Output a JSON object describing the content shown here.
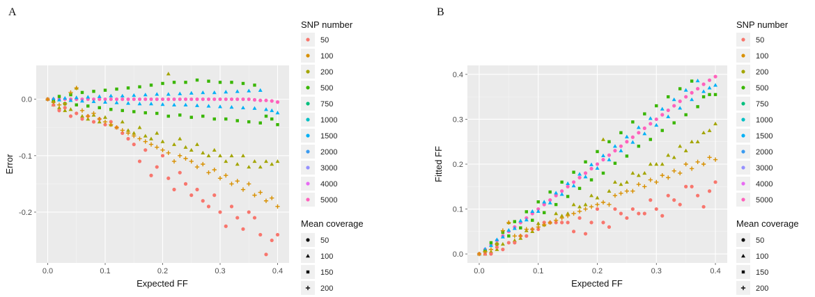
{
  "figure": {
    "colors": {
      "panel_bg": "#ebebeb",
      "grid_major": "#ffffff",
      "grid_minor": "#f5f5f5",
      "legend_key_bg": "#f0f0f0"
    }
  },
  "legend": {
    "color_title": "SNP number",
    "shape_title": "Mean coverage",
    "snp_levels": [
      {
        "label": "50",
        "color": "#F8766D"
      },
      {
        "label": "100",
        "color": "#D89000"
      },
      {
        "label": "200",
        "color": "#A3A500"
      },
      {
        "label": "500",
        "color": "#39B600"
      },
      {
        "label": "750",
        "color": "#00BF7D"
      },
      {
        "label": "1000",
        "color": "#00BFC4"
      },
      {
        "label": "1500",
        "color": "#00B0F6"
      },
      {
        "label": "2000",
        "color": "#3B9BF0"
      },
      {
        "label": "3000",
        "color": "#9590FF"
      },
      {
        "label": "4000",
        "color": "#E76BF3"
      },
      {
        "label": "5000",
        "color": "#FF62BC"
      }
    ],
    "coverage_levels": [
      {
        "label": "50",
        "shape": "circle"
      },
      {
        "label": "100",
        "shape": "triangle"
      },
      {
        "label": "150",
        "shape": "square"
      },
      {
        "label": "200",
        "shape": "plus"
      }
    ]
  },
  "chart_data": [
    {
      "panel": "A",
      "type": "scatter",
      "xlabel": "Expected FF",
      "ylabel": "Error",
      "xlim": [
        -0.02,
        0.42
      ],
      "ylim": [
        -0.29,
        0.06
      ],
      "xticks": [
        "0.0",
        "0.1",
        "0.2",
        "0.3",
        "0.4"
      ],
      "xtick_values": [
        0,
        0.1,
        0.2,
        0.3,
        0.4
      ],
      "yticks": [
        "-0.2",
        "-0.1",
        "0.0"
      ],
      "ytick_values": [
        -0.2,
        -0.1,
        0.0
      ],
      "grid": true,
      "legend_position": "right",
      "x": [
        0,
        0.01,
        0.02,
        0.03,
        0.04,
        0.05,
        0.06,
        0.07,
        0.08,
        0.09,
        0.1,
        0.11,
        0.12,
        0.13,
        0.14,
        0.15,
        0.16,
        0.17,
        0.18,
        0.19,
        0.2,
        0.21,
        0.22,
        0.23,
        0.24,
        0.25,
        0.26,
        0.27,
        0.28,
        0.29,
        0.3,
        0.31,
        0.32,
        0.33,
        0.34,
        0.35,
        0.36,
        0.37,
        0.38,
        0.39,
        0.4
      ],
      "series": [
        {
          "snp": "5000",
          "coverage": "50",
          "y": [
            0,
            0,
            0,
            0,
            0,
            0,
            0,
            0,
            0,
            0,
            0,
            0,
            0,
            0,
            0,
            0,
            0,
            0,
            0,
            0,
            0,
            0,
            0,
            0,
            0,
            0,
            0,
            0,
            0,
            0,
            0,
            0,
            0,
            0,
            0,
            0,
            -0.001,
            -0.002,
            -0.002,
            -0.003,
            -0.005
          ]
        },
        {
          "snp": "1500",
          "coverage": "100",
          "y": [
            0,
            0.001,
            -0.001,
            0.002,
            -0.002,
            0.003,
            -0.003,
            0.004,
            -0.004,
            0.005,
            -0.005,
            0.006,
            -0.006,
            0.006,
            -0.007,
            0.007,
            -0.008,
            0.008,
            -0.008,
            0.009,
            -0.009,
            0.009,
            -0.01,
            0.01,
            -0.01,
            0.011,
            -0.011,
            0.012,
            -0.012,
            0.012,
            -0.013,
            0.013,
            -0.014,
            0.014,
            -0.015,
            0.015,
            -0.016,
            0.016,
            -0.018,
            -0.02,
            -0.024
          ]
        },
        {
          "snp": "500",
          "coverage": "150",
          "y": [
            0,
            -0.004,
            0.005,
            -0.008,
            0.008,
            -0.01,
            0.012,
            -0.012,
            0.014,
            -0.015,
            0.016,
            -0.018,
            0.018,
            -0.02,
            0.02,
            -0.022,
            0.022,
            -0.024,
            0.025,
            -0.025,
            0.028,
            -0.03,
            0.03,
            -0.028,
            0.03,
            -0.032,
            0.034,
            -0.03,
            0.032,
            -0.035,
            0.03,
            -0.035,
            0.03,
            -0.038,
            0.028,
            -0.04,
            0.025,
            -0.042,
            -0.03,
            -0.035,
            -0.045
          ]
        },
        {
          "snp": "200",
          "coverage": "100",
          "y": [
            0,
            -0.01,
            -0.015,
            -0.02,
            -0.018,
            0.02,
            -0.03,
            -0.035,
            -0.028,
            -0.04,
            -0.032,
            -0.045,
            -0.05,
            -0.04,
            -0.055,
            -0.06,
            -0.05,
            -0.065,
            -0.07,
            -0.06,
            -0.075,
            0.045,
            -0.08,
            -0.07,
            -0.085,
            -0.09,
            -0.08,
            -0.095,
            -0.1,
            -0.09,
            -0.1,
            -0.11,
            -0.1,
            -0.115,
            -0.1,
            -0.12,
            -0.11,
            -0.12,
            -0.11,
            -0.115,
            -0.11
          ]
        },
        {
          "snp": "50",
          "coverage": "50",
          "y": [
            0,
            -0.01,
            -0.02,
            -0.015,
            -0.03,
            -0.025,
            -0.035,
            -0.03,
            -0.04,
            -0.035,
            -0.045,
            -0.04,
            -0.05,
            -0.06,
            -0.07,
            -0.08,
            -0.11,
            -0.09,
            -0.135,
            -0.12,
            -0.1,
            -0.14,
            -0.16,
            -0.13,
            -0.15,
            -0.17,
            -0.16,
            -0.18,
            -0.19,
            -0.17,
            -0.2,
            -0.225,
            -0.19,
            -0.21,
            -0.23,
            -0.2,
            -0.21,
            -0.24,
            -0.275,
            -0.25,
            -0.24
          ]
        },
        {
          "snp": "100",
          "coverage": "200",
          "y": [
            0,
            -0.005,
            -0.01,
            -0.008,
            0.012,
            0.02,
            -0.02,
            -0.03,
            -0.025,
            -0.035,
            -0.04,
            -0.045,
            -0.05,
            -0.055,
            -0.06,
            -0.065,
            -0.07,
            -0.075,
            -0.08,
            -0.085,
            -0.09,
            -0.095,
            -0.11,
            -0.1,
            -0.105,
            -0.11,
            -0.12,
            -0.115,
            -0.13,
            -0.125,
            -0.14,
            -0.135,
            -0.15,
            -0.145,
            -0.16,
            -0.15,
            -0.17,
            -0.165,
            -0.18,
            -0.175,
            -0.19
          ]
        }
      ]
    },
    {
      "panel": "B",
      "type": "scatter",
      "xlabel": "Expected FF",
      "ylabel": "Fitted FF",
      "xlim": [
        -0.02,
        0.42
      ],
      "ylim": [
        -0.02,
        0.42
      ],
      "xticks": [
        "0.0",
        "0.1",
        "0.2",
        "0.3",
        "0.4"
      ],
      "xtick_values": [
        0,
        0.1,
        0.2,
        0.3,
        0.4
      ],
      "yticks": [
        "0.0",
        "0.1",
        "0.2",
        "0.3",
        "0.4"
      ],
      "ytick_values": [
        0,
        0.1,
        0.2,
        0.3,
        0.4
      ],
      "grid": true,
      "legend_position": "right",
      "x": [
        0,
        0.01,
        0.02,
        0.03,
        0.04,
        0.05,
        0.06,
        0.07,
        0.08,
        0.09,
        0.1,
        0.11,
        0.12,
        0.13,
        0.14,
        0.15,
        0.16,
        0.17,
        0.18,
        0.19,
        0.2,
        0.21,
        0.22,
        0.23,
        0.24,
        0.25,
        0.26,
        0.27,
        0.28,
        0.29,
        0.3,
        0.31,
        0.32,
        0.33,
        0.34,
        0.35,
        0.36,
        0.37,
        0.38,
        0.39,
        0.4
      ],
      "series": [
        {
          "snp": "5000",
          "coverage": "50",
          "y": [
            0,
            0.01,
            0.02,
            0.03,
            0.04,
            0.05,
            0.06,
            0.07,
            0.08,
            0.09,
            0.1,
            0.11,
            0.12,
            0.13,
            0.14,
            0.15,
            0.16,
            0.17,
            0.18,
            0.19,
            0.2,
            0.21,
            0.22,
            0.23,
            0.24,
            0.25,
            0.26,
            0.27,
            0.28,
            0.29,
            0.3,
            0.31,
            0.32,
            0.33,
            0.34,
            0.35,
            0.359,
            0.368,
            0.378,
            0.387,
            0.395
          ]
        },
        {
          "snp": "1500",
          "coverage": "100",
          "y": [
            0,
            0.011,
            0.019,
            0.032,
            0.038,
            0.053,
            0.057,
            0.074,
            0.076,
            0.095,
            0.095,
            0.116,
            0.114,
            0.136,
            0.133,
            0.157,
            0.152,
            0.178,
            0.172,
            0.199,
            0.191,
            0.219,
            0.21,
            0.24,
            0.23,
            0.261,
            0.249,
            0.282,
            0.268,
            0.302,
            0.287,
            0.323,
            0.306,
            0.344,
            0.325,
            0.365,
            0.344,
            0.386,
            0.362,
            0.37,
            0.376
          ]
        },
        {
          "snp": "500",
          "coverage": "150",
          "y": [
            0,
            0.006,
            0.025,
            0.022,
            0.048,
            0.04,
            0.072,
            0.058,
            0.094,
            0.075,
            0.116,
            0.092,
            0.138,
            0.11,
            0.16,
            0.128,
            0.182,
            0.146,
            0.205,
            0.165,
            0.228,
            0.18,
            0.25,
            0.202,
            0.27,
            0.218,
            0.294,
            0.24,
            0.312,
            0.255,
            0.33,
            0.275,
            0.35,
            0.292,
            0.368,
            0.31,
            0.385,
            0.328,
            0.35,
            0.355,
            0.355
          ]
        },
        {
          "snp": "200",
          "coverage": "100",
          "y": [
            0,
            0.0,
            0.005,
            0.01,
            0.022,
            0.07,
            0.03,
            0.035,
            0.052,
            0.05,
            0.068,
            0.065,
            0.07,
            0.09,
            0.085,
            0.09,
            0.11,
            0.105,
            0.11,
            0.13,
            0.125,
            0.255,
            0.14,
            0.16,
            0.155,
            0.16,
            0.18,
            0.175,
            0.18,
            0.2,
            0.2,
            0.2,
            0.22,
            0.215,
            0.24,
            0.23,
            0.25,
            0.25,
            0.27,
            0.275,
            0.29
          ]
        },
        {
          "snp": "50",
          "coverage": "50",
          "y": [
            0,
            0.0,
            0.0,
            0.015,
            0.01,
            0.025,
            0.025,
            0.04,
            0.04,
            0.055,
            0.055,
            0.07,
            0.07,
            0.07,
            0.07,
            0.07,
            0.05,
            0.08,
            0.045,
            0.07,
            0.1,
            0.07,
            0.06,
            0.1,
            0.09,
            0.08,
            0.1,
            0.09,
            0.09,
            0.12,
            0.1,
            0.085,
            0.13,
            0.12,
            0.11,
            0.15,
            0.15,
            0.13,
            0.105,
            0.14,
            0.16
          ]
        },
        {
          "snp": "100",
          "coverage": "200",
          "y": [
            0,
            0.005,
            0.01,
            0.022,
            0.052,
            0.07,
            0.04,
            0.04,
            0.055,
            0.055,
            0.06,
            0.065,
            0.07,
            0.075,
            0.08,
            0.085,
            0.09,
            0.095,
            0.1,
            0.105,
            0.11,
            0.115,
            0.11,
            0.13,
            0.135,
            0.14,
            0.14,
            0.155,
            0.15,
            0.165,
            0.16,
            0.175,
            0.17,
            0.185,
            0.18,
            0.2,
            0.19,
            0.205,
            0.2,
            0.215,
            0.21
          ]
        }
      ]
    }
  ]
}
